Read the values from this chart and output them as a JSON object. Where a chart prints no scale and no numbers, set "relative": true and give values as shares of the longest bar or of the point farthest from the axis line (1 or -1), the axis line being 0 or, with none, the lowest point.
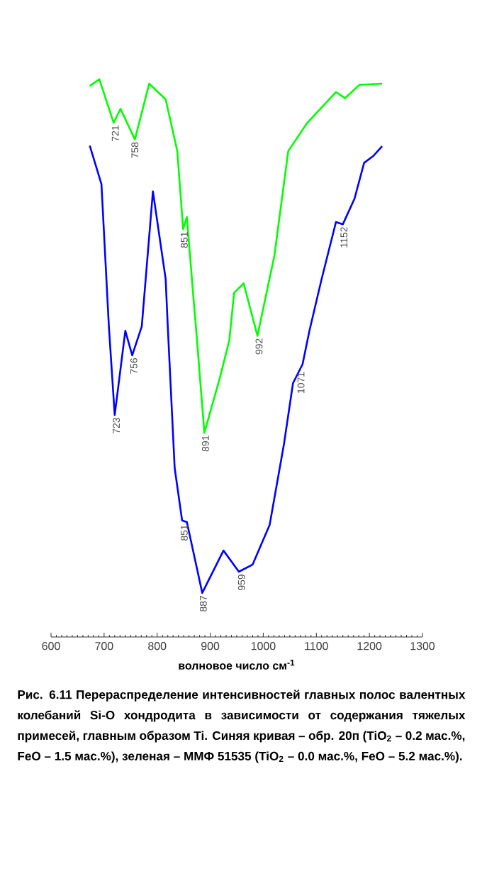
{
  "chart_data": {
    "type": "line",
    "relative": true,
    "xlabel": "волновое число см$^{-1}$",
    "xlim": [
      600,
      1300
    ],
    "xticks": [
      600,
      700,
      800,
      900,
      1000,
      1100,
      1200,
      1300
    ],
    "series": [
      {
        "color": "#00ff00",
        "x": [
          673,
          691,
          718,
          731,
          758,
          785,
          816,
          838,
          849,
          856,
          869,
          873,
          889,
          918,
          936,
          945,
          963,
          989,
          1021,
          1047,
          1083,
          1137,
          1154,
          1181,
          1224
        ],
        "values": [
          0.988,
          1.0,
          0.922,
          0.947,
          0.892,
          0.992,
          0.964,
          0.871,
          0.731,
          0.753,
          0.601,
          0.557,
          0.366,
          0.464,
          0.532,
          0.617,
          0.634,
          0.54,
          0.684,
          0.871,
          0.922,
          0.977,
          0.966,
          0.99,
          0.992
        ]
      },
      {
        "color": "#0000ff",
        "x": [
          673,
          695,
          709,
          720,
          740,
          753,
          771,
          792,
          816,
          820,
          833,
          847,
          856,
          885,
          925,
          954,
          980,
          1012,
          1039,
          1056,
          1074,
          1087,
          1110,
          1137,
          1150,
          1172,
          1190,
          1208,
          1224
        ],
        "values": [
          0.881,
          0.812,
          0.557,
          0.398,
          0.549,
          0.505,
          0.557,
          0.799,
          0.642,
          0.557,
          0.303,
          0.209,
          0.206,
          0.079,
          0.155,
          0.117,
          0.13,
          0.201,
          0.346,
          0.455,
          0.489,
          0.549,
          0.642,
          0.744,
          0.74,
          0.786,
          0.85,
          0.863,
          0.88
        ]
      }
    ],
    "annotations": [
      {
        "text": "721",
        "x": 721,
        "y": 0.922
      },
      {
        "text": "758",
        "x": 758,
        "y": 0.892
      },
      {
        "text": "851",
        "x": 851,
        "y": 0.731
      },
      {
        "text": "891",
        "x": 891,
        "y": 0.366
      },
      {
        "text": "992",
        "x": 992,
        "y": 0.54
      },
      {
        "text": "723",
        "x": 723,
        "y": 0.398
      },
      {
        "text": "756",
        "x": 756,
        "y": 0.505
      },
      {
        "text": "851",
        "x": 851,
        "y": 0.206
      },
      {
        "text": "887",
        "x": 887,
        "y": 0.079
      },
      {
        "text": "959",
        "x": 959,
        "y": 0.117
      },
      {
        "text": "1071",
        "x": 1071,
        "y": 0.48
      },
      {
        "text": "1152",
        "x": 1152,
        "y": 0.74
      },
      "Рис. 6.11 Перераспределение интенсивностей главных полос валентных колебаний Si-O хондродита в зависимости от содержания тяжелых примесей, главным образом Ti. Синяя кривая – обр. 20п (TiO$_{2}$ – 0.2 мас.%, FeO – 1.5 мас.%), зеленая – ММФ 51535 (TiO$_{2}$ – 0.0 мас.%, FeO – 5.2 мас.%)."
    ]
  }
}
